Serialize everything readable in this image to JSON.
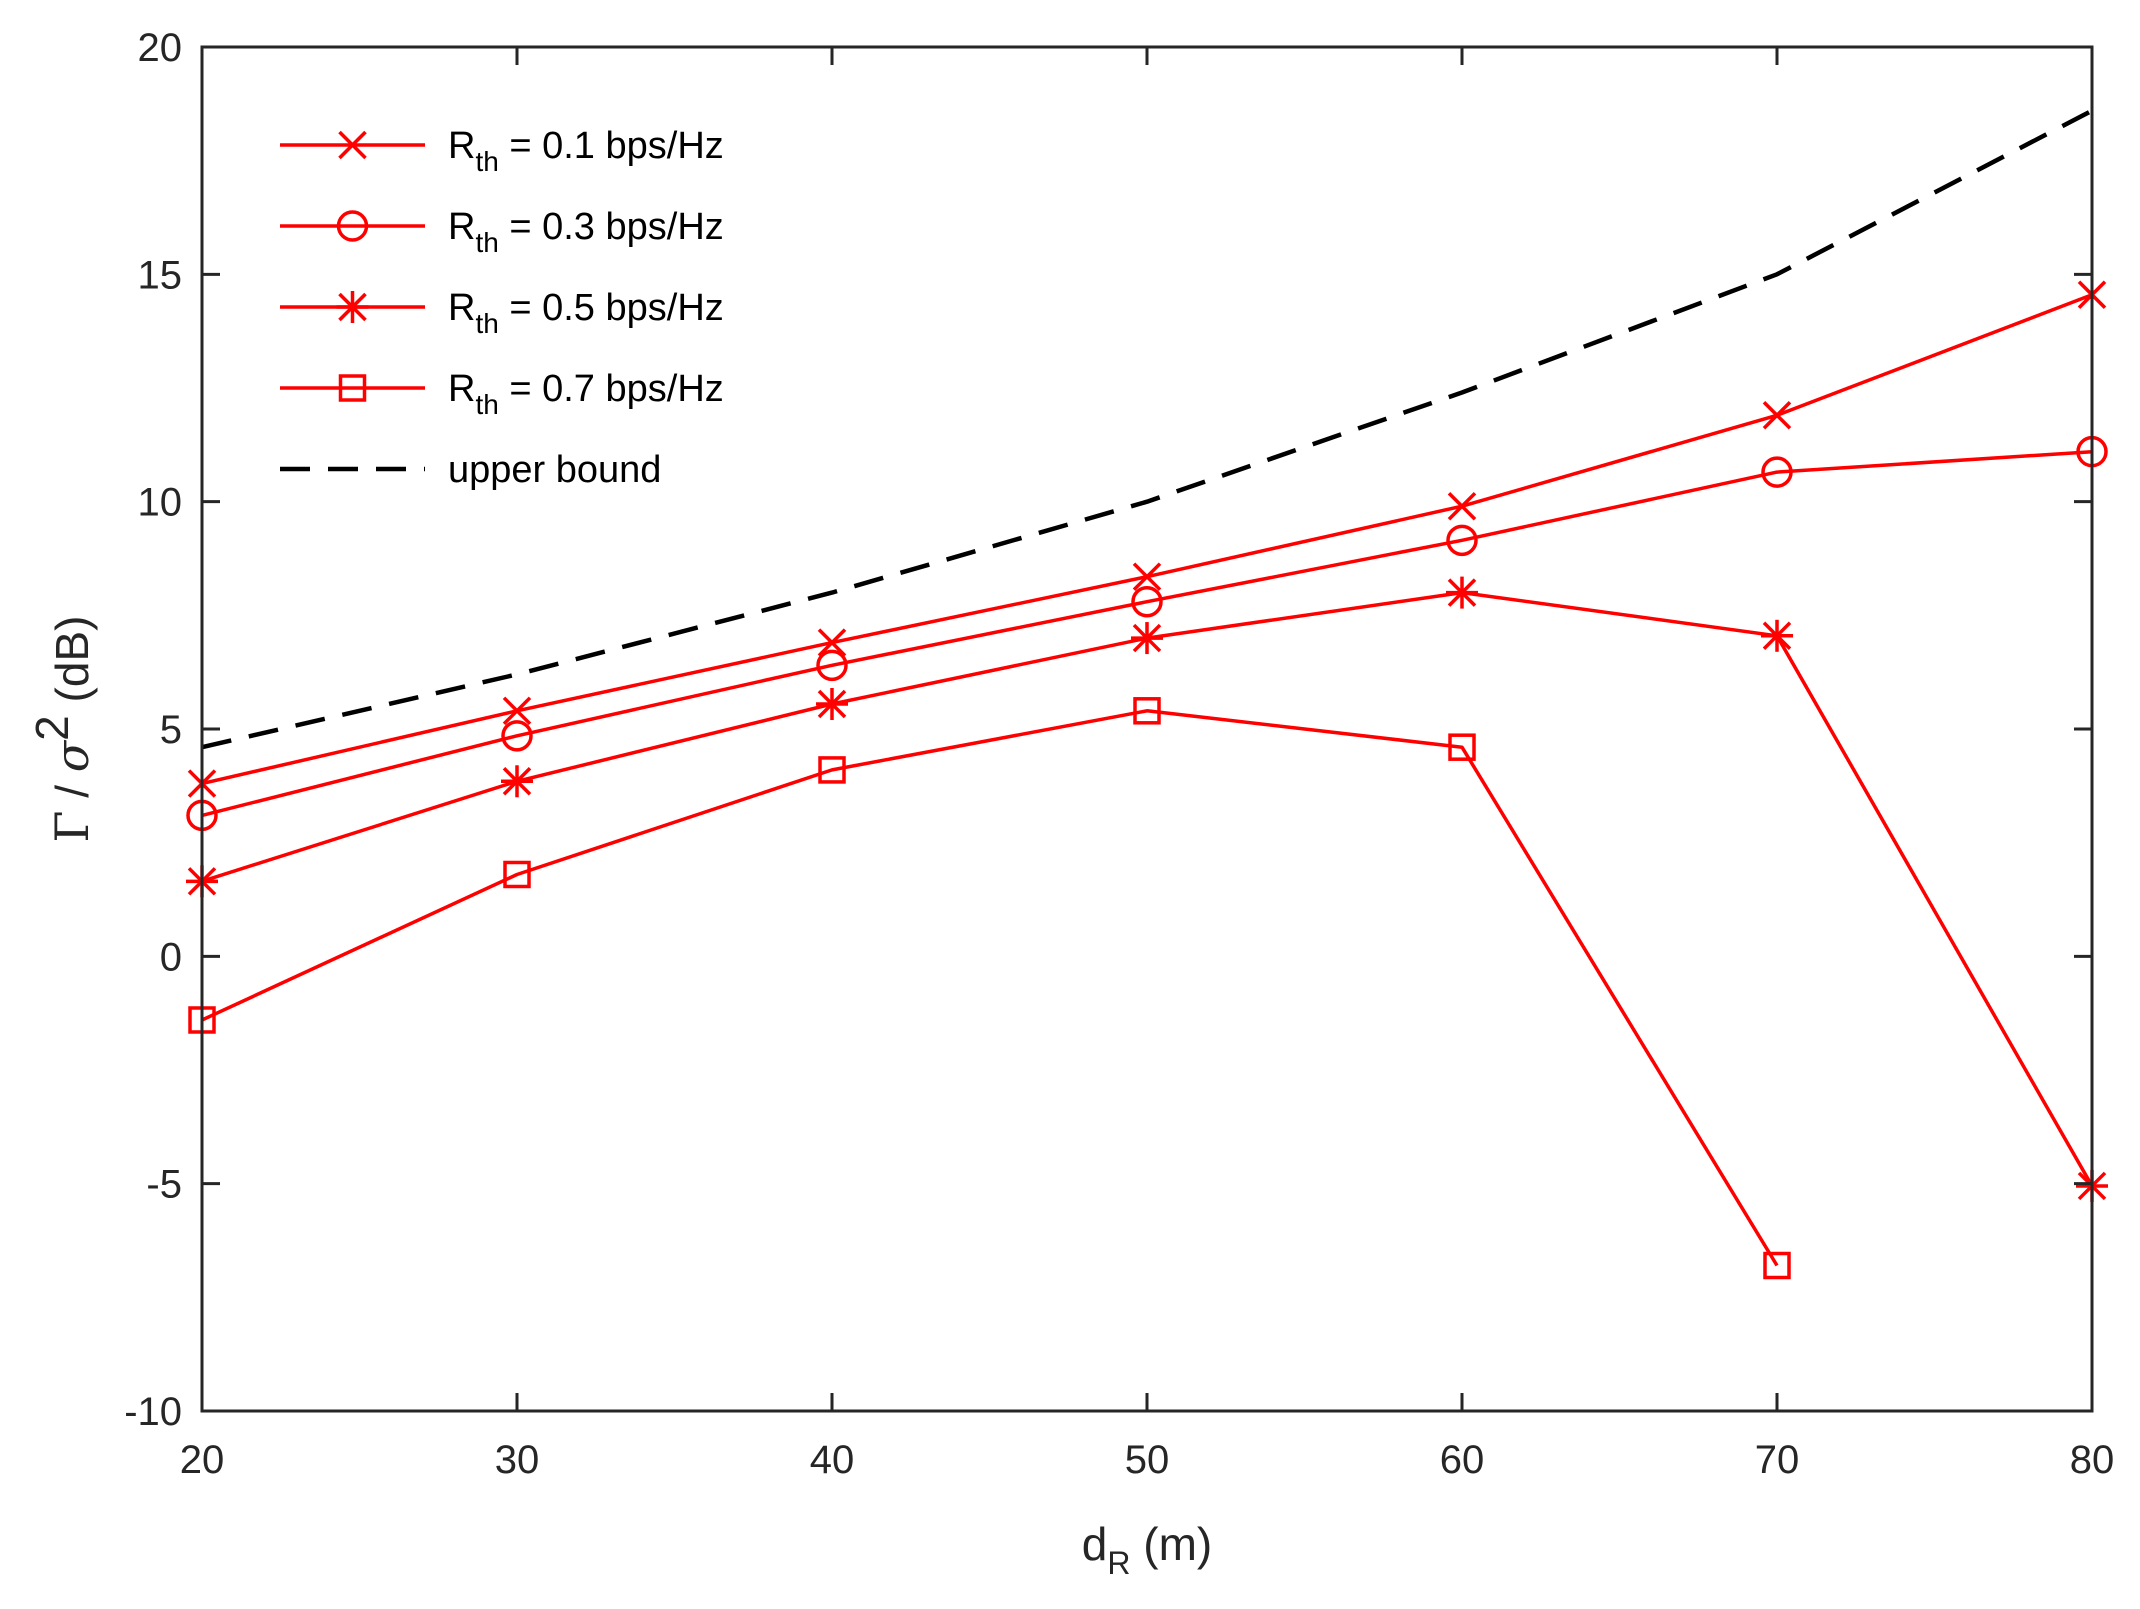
{
  "chart_data": {
    "type": "line",
    "x": [
      20,
      30,
      40,
      50,
      60,
      70,
      80
    ],
    "xlim": [
      20,
      80
    ],
    "ylim": [
      -10,
      20
    ],
    "xticks": [
      20,
      30,
      40,
      50,
      60,
      70,
      80
    ],
    "yticks": [
      -10,
      -5,
      0,
      5,
      10,
      15,
      20
    ],
    "xtick_labels": [
      "20",
      "30",
      "40",
      "50",
      "60",
      "70",
      "80"
    ],
    "ytick_labels": [
      "-10",
      "-5",
      "0",
      "5",
      "10",
      "15",
      "20"
    ],
    "xlabel": {
      "main": "d",
      "sub": "R",
      "unit": " (m)"
    },
    "ylabel": {
      "gamma": "Γ",
      "slash": " / ",
      "sigma": "σ",
      "sup": "2",
      "unit": " (dB)"
    },
    "grid": false,
    "legend_position": "top-left",
    "series": [
      {
        "name": "R_th = 0.1 bps/Hz",
        "label_main": "R",
        "label_sub": "th",
        "label_rest": " = 0.1 bps/Hz",
        "marker": "x",
        "dash": "solid",
        "color": "#ff0000",
        "values": [
          3.8,
          5.4,
          6.9,
          8.35,
          9.9,
          11.9,
          14.55
        ]
      },
      {
        "name": "R_th = 0.3 bps/Hz",
        "label_main": "R",
        "label_sub": "th",
        "label_rest": " = 0.3 bps/Hz",
        "marker": "circle",
        "dash": "solid",
        "color": "#ff0000",
        "values": [
          3.1,
          4.85,
          6.4,
          7.8,
          9.15,
          10.65,
          11.1
        ]
      },
      {
        "name": "R_th = 0.5 bps/Hz",
        "label_main": "R",
        "label_sub": "th",
        "label_rest": " = 0.5 bps/Hz",
        "marker": "asterisk",
        "dash": "solid",
        "color": "#ff0000",
        "values": [
          1.65,
          3.85,
          5.55,
          7.0,
          8.0,
          7.05,
          -5.05
        ]
      },
      {
        "name": "R_th = 0.7 bps/Hz",
        "label_main": "R",
        "label_sub": "th",
        "label_rest": " = 0.7 bps/Hz",
        "marker": "square",
        "dash": "solid",
        "color": "#ff0000",
        "values": [
          -1.4,
          1.8,
          4.1,
          5.4,
          4.6,
          -6.8,
          null
        ]
      },
      {
        "name": "upper bound",
        "label_main": "upper bound",
        "label_sub": "",
        "label_rest": "",
        "marker": "none",
        "dash": "dashed",
        "color": "#000000",
        "values": [
          4.6,
          6.2,
          8.0,
          10.0,
          12.4,
          15.0,
          18.6
        ]
      }
    ]
  }
}
